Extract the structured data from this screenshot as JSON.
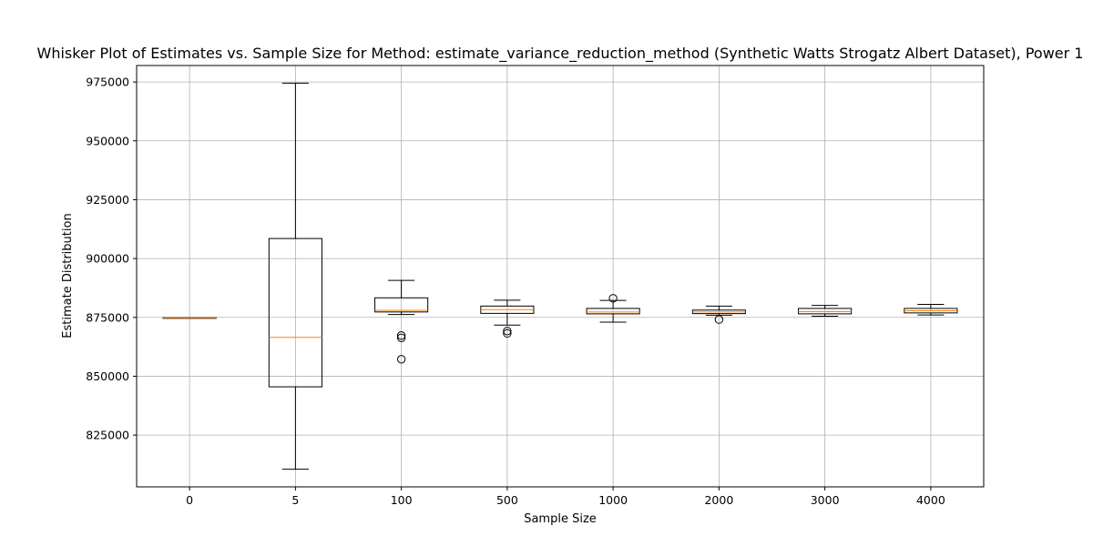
{
  "chart_data": {
    "type": "box",
    "title": "Whisker Plot of Estimates vs. Sample Size for Method: estimate_variance_reduction_method (Synthetic Watts Strogatz Albert Dataset), Power 1",
    "xlabel": "Sample Size",
    "ylabel": "Estimate Distribution",
    "categories": [
      "0",
      "5",
      "100",
      "500",
      "1000",
      "2000",
      "3000",
      "4000"
    ],
    "ylim": [
      803000,
      982000
    ],
    "yticks": [
      825000,
      850000,
      875000,
      900000,
      925000,
      950000,
      975000
    ],
    "grid": true,
    "colors": {
      "box": "#000000",
      "median": "#ff7f0e",
      "grid": "#b0b0b0"
    },
    "boxes": [
      {
        "category": "0",
        "whisker_low": 874700,
        "q1": 874700,
        "median": 874800,
        "q3": 874900,
        "whisker_high": 874900,
        "outliers": []
      },
      {
        "category": "5",
        "whisker_low": 810500,
        "q1": 845500,
        "median": 866500,
        "q3": 908500,
        "whisker_high": 974500,
        "outliers": []
      },
      {
        "category": "100",
        "whisker_low": 876200,
        "q1": 877300,
        "median": 878000,
        "q3": 883300,
        "whisker_high": 890700,
        "outliers": [
          867300,
          866300,
          857200
        ]
      },
      {
        "category": "500",
        "whisker_low": 871700,
        "q1": 876700,
        "median": 878300,
        "q3": 879800,
        "whisker_high": 882300,
        "outliers": [
          869200,
          868200
        ]
      },
      {
        "category": "1000",
        "whisker_low": 873000,
        "q1": 876500,
        "median": 877300,
        "q3": 878800,
        "whisker_high": 882200,
        "outliers": [
          883100
        ]
      },
      {
        "category": "2000",
        "whisker_low": 875900,
        "q1": 876600,
        "median": 877300,
        "q3": 878100,
        "whisker_high": 879800,
        "outliers": [
          874100
        ]
      },
      {
        "category": "3000",
        "whisker_low": 875500,
        "q1": 876500,
        "median": 877400,
        "q3": 878800,
        "whisker_high": 880100,
        "outliers": []
      },
      {
        "category": "4000",
        "whisker_low": 876000,
        "q1": 876900,
        "median": 877800,
        "q3": 878800,
        "whisker_high": 880500,
        "outliers": []
      }
    ]
  }
}
